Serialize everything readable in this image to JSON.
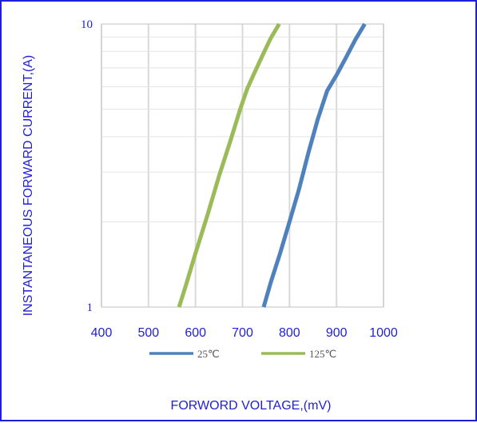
{
  "chart_data": {
    "type": "line",
    "xlabel": "FORWORD VOLTAGE,(mV)",
    "ylabel": "INSTANTANEOUS FORWARD CURRENT,(A)",
    "xlim": [
      400,
      1000
    ],
    "ylim": [
      1,
      10
    ],
    "yscale": "log",
    "grid": true,
    "legend_position": "bottom",
    "x_ticks": [
      "400",
      "500",
      "600",
      "700",
      "800",
      "900",
      "1000"
    ],
    "y_ticks": [
      "1",
      "10"
    ],
    "series": [
      {
        "name": "25℃",
        "color": "#4f81bd",
        "points": [
          [
            745,
            1.0
          ],
          [
            760,
            1.22
          ],
          [
            780,
            1.55
          ],
          [
            800,
            2.0
          ],
          [
            820,
            2.6
          ],
          [
            840,
            3.5
          ],
          [
            860,
            4.6
          ],
          [
            880,
            5.8
          ],
          [
            900,
            6.6
          ],
          [
            920,
            7.6
          ],
          [
            940,
            8.8
          ],
          [
            960,
            10.0
          ]
        ]
      },
      {
        "name": "125℃",
        "color": "#9bbb59",
        "points": [
          [
            565,
            1.0
          ],
          [
            580,
            1.2
          ],
          [
            600,
            1.55
          ],
          [
            625,
            2.1
          ],
          [
            650,
            2.9
          ],
          [
            675,
            3.9
          ],
          [
            695,
            5.0
          ],
          [
            710,
            5.9
          ],
          [
            725,
            6.7
          ],
          [
            745,
            7.9
          ],
          [
            760,
            8.9
          ],
          [
            778,
            10.0
          ]
        ]
      }
    ]
  }
}
